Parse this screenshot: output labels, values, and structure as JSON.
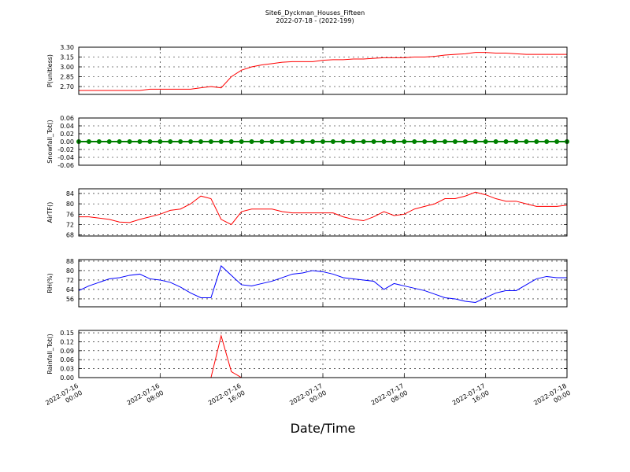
{
  "chart_data": [
    {
      "type": "line",
      "title": "Site6_Dyckman_Houses_Fifteen",
      "subtitle": "2022-07-18 - (2022-199)",
      "ylabel": "P(unitless)",
      "color": "#ff0000",
      "x": [
        "2022-07-16 00:00",
        "2022-07-16 01:00",
        "2022-07-16 02:00",
        "2022-07-16 03:00",
        "2022-07-16 04:00",
        "2022-07-16 05:00",
        "2022-07-16 06:00",
        "2022-07-16 07:00",
        "2022-07-16 08:00",
        "2022-07-16 09:00",
        "2022-07-16 10:00",
        "2022-07-16 11:00",
        "2022-07-16 12:00",
        "2022-07-16 13:00",
        "2022-07-16 14:00",
        "2022-07-16 15:00",
        "2022-07-16 16:00",
        "2022-07-16 17:00",
        "2022-07-16 18:00",
        "2022-07-16 19:00",
        "2022-07-16 20:00",
        "2022-07-16 21:00",
        "2022-07-16 22:00",
        "2022-07-16 23:00",
        "2022-07-17 00:00",
        "2022-07-17 01:00",
        "2022-07-17 02:00",
        "2022-07-17 03:00",
        "2022-07-17 04:00",
        "2022-07-17 05:00",
        "2022-07-17 06:00",
        "2022-07-17 07:00",
        "2022-07-17 08:00",
        "2022-07-17 09:00",
        "2022-07-17 10:00",
        "2022-07-17 11:00",
        "2022-07-17 12:00",
        "2022-07-17 13:00",
        "2022-07-17 14:00",
        "2022-07-17 15:00",
        "2022-07-17 16:00",
        "2022-07-17 17:00",
        "2022-07-17 18:00",
        "2022-07-17 19:00",
        "2022-07-17 20:00",
        "2022-07-17 21:00",
        "2022-07-17 22:00",
        "2022-07-17 23:00",
        "2022-07-18 00:00"
      ],
      "values": [
        2.64,
        2.64,
        2.64,
        2.64,
        2.64,
        2.64,
        2.64,
        2.66,
        2.66,
        2.66,
        2.66,
        2.66,
        2.68,
        2.7,
        2.68,
        2.85,
        2.95,
        3.0,
        3.03,
        3.05,
        3.07,
        3.08,
        3.08,
        3.08,
        3.1,
        3.11,
        3.11,
        3.12,
        3.12,
        3.13,
        3.14,
        3.14,
        3.14,
        3.15,
        3.15,
        3.16,
        3.18,
        3.19,
        3.2,
        3.22,
        3.22,
        3.21,
        3.21,
        3.2,
        3.19,
        3.19,
        3.19,
        3.19,
        3.19
      ],
      "xlim": [
        "2022-07-16 00:00",
        "2022-07-18 00:00"
      ],
      "xticks": [
        "2022-07-16 00:00",
        "2022-07-16 08:00",
        "2022-07-16 16:00",
        "2022-07-17 00:00",
        "2022-07-17 08:00",
        "2022-07-17 16:00",
        "2022-07-18 00:00"
      ],
      "ylim": [
        2.58,
        3.3
      ],
      "yticks": [
        {
          "value": 2.7,
          "label": "2.70"
        },
        2.85,
        {
          "value": 3.0,
          "label": "3.00"
        },
        3.15,
        {
          "value": 3.3,
          "label": "3.30"
        }
      ],
      "grid": true
    },
    {
      "type": "line",
      "ylabel": "Snowfall_Tot()",
      "color": "#008000",
      "marker": "circle",
      "x": [
        "2022-07-16 00:00",
        "2022-07-16 01:00",
        "2022-07-16 02:00",
        "2022-07-16 03:00",
        "2022-07-16 04:00",
        "2022-07-16 05:00",
        "2022-07-16 06:00",
        "2022-07-16 07:00",
        "2022-07-16 08:00",
        "2022-07-16 09:00",
        "2022-07-16 10:00",
        "2022-07-16 11:00",
        "2022-07-16 12:00",
        "2022-07-16 13:00",
        "2022-07-16 14:00",
        "2022-07-16 15:00",
        "2022-07-16 16:00",
        "2022-07-16 17:00",
        "2022-07-16 18:00",
        "2022-07-16 19:00",
        "2022-07-16 20:00",
        "2022-07-16 21:00",
        "2022-07-16 22:00",
        "2022-07-16 23:00",
        "2022-07-17 00:00",
        "2022-07-17 01:00",
        "2022-07-17 02:00",
        "2022-07-17 03:00",
        "2022-07-17 04:00",
        "2022-07-17 05:00",
        "2022-07-17 06:00",
        "2022-07-17 07:00",
        "2022-07-17 08:00",
        "2022-07-17 09:00",
        "2022-07-17 10:00",
        "2022-07-17 11:00",
        "2022-07-17 12:00",
        "2022-07-17 13:00",
        "2022-07-17 14:00",
        "2022-07-17 15:00",
        "2022-07-17 16:00",
        "2022-07-17 17:00",
        "2022-07-17 18:00",
        "2022-07-17 19:00",
        "2022-07-17 20:00",
        "2022-07-17 21:00",
        "2022-07-17 22:00",
        "2022-07-17 23:00",
        "2022-07-18 00:00"
      ],
      "values": [
        0,
        0,
        0,
        0,
        0,
        0,
        0,
        0,
        0,
        0,
        0,
        0,
        0,
        0,
        0,
        0,
        0,
        0,
        0,
        0,
        0,
        0,
        0,
        0,
        0,
        0,
        0,
        0,
        0,
        0,
        0,
        0,
        0,
        0,
        0,
        0,
        0,
        0,
        0,
        0,
        0,
        0,
        0,
        0,
        0,
        0,
        0,
        0,
        0
      ],
      "xlim": [
        "2022-07-16 00:00",
        "2022-07-18 00:00"
      ],
      "xticks": [
        "2022-07-16 00:00",
        "2022-07-16 08:00",
        "2022-07-16 16:00",
        "2022-07-17 00:00",
        "2022-07-17 08:00",
        "2022-07-17 16:00",
        "2022-07-18 00:00"
      ],
      "ylim": [
        -0.06,
        0.06
      ],
      "yticks": [
        -0.06,
        -0.04,
        -0.02,
        {
          "value": 0,
          "label": "0.00"
        },
        0.02,
        0.04,
        0.06
      ],
      "grid": true
    },
    {
      "type": "line",
      "ylabel": "AirTF()",
      "color": "#ff0000",
      "x": [
        "2022-07-16 00:00",
        "2022-07-16 01:00",
        "2022-07-16 02:00",
        "2022-07-16 03:00",
        "2022-07-16 04:00",
        "2022-07-16 05:00",
        "2022-07-16 06:00",
        "2022-07-16 07:00",
        "2022-07-16 08:00",
        "2022-07-16 09:00",
        "2022-07-16 10:00",
        "2022-07-16 11:00",
        "2022-07-16 12:00",
        "2022-07-16 13:00",
        "2022-07-16 14:00",
        "2022-07-16 15:00",
        "2022-07-16 16:00",
        "2022-07-16 17:00",
        "2022-07-16 18:00",
        "2022-07-16 19:00",
        "2022-07-16 20:00",
        "2022-07-16 21:00",
        "2022-07-16 22:00",
        "2022-07-16 23:00",
        "2022-07-17 00:00",
        "2022-07-17 01:00",
        "2022-07-17 02:00",
        "2022-07-17 03:00",
        "2022-07-17 04:00",
        "2022-07-17 05:00",
        "2022-07-17 06:00",
        "2022-07-17 07:00",
        "2022-07-17 08:00",
        "2022-07-17 09:00",
        "2022-07-17 10:00",
        "2022-07-17 11:00",
        "2022-07-17 12:00",
        "2022-07-17 13:00",
        "2022-07-17 14:00",
        "2022-07-17 15:00",
        "2022-07-17 16:00",
        "2022-07-17 17:00",
        "2022-07-17 18:00",
        "2022-07-17 19:00",
        "2022-07-17 20:00",
        "2022-07-17 21:00",
        "2022-07-17 22:00",
        "2022-07-17 23:00",
        "2022-07-18 00:00"
      ],
      "values": [
        75,
        75,
        74.5,
        74,
        73,
        72.8,
        74,
        75,
        76,
        77.5,
        78,
        80,
        83,
        82,
        74,
        72,
        77,
        78,
        78,
        78,
        77,
        76.5,
        76.5,
        76.5,
        76.5,
        76.5,
        75,
        74,
        73.5,
        75,
        77,
        75.5,
        76,
        78,
        79,
        80,
        82,
        82,
        83,
        84.5,
        83.5,
        82,
        81,
        81,
        80,
        79,
        79,
        79,
        79.5
      ],
      "xlim": [
        "2022-07-16 00:00",
        "2022-07-18 00:00"
      ],
      "xticks": [
        "2022-07-16 00:00",
        "2022-07-16 08:00",
        "2022-07-16 16:00",
        "2022-07-17 00:00",
        "2022-07-17 08:00",
        "2022-07-17 16:00",
        "2022-07-18 00:00"
      ],
      "ylim": [
        67.6,
        85.8
      ],
      "yticks": [
        68,
        72,
        76,
        80,
        84
      ],
      "grid": true
    },
    {
      "type": "line",
      "ylabel": "RH(%)",
      "color": "#0000ff",
      "x": [
        "2022-07-16 00:00",
        "2022-07-16 01:00",
        "2022-07-16 02:00",
        "2022-07-16 03:00",
        "2022-07-16 04:00",
        "2022-07-16 05:00",
        "2022-07-16 06:00",
        "2022-07-16 07:00",
        "2022-07-16 08:00",
        "2022-07-16 09:00",
        "2022-07-16 10:00",
        "2022-07-16 11:00",
        "2022-07-16 12:00",
        "2022-07-16 13:00",
        "2022-07-16 14:00",
        "2022-07-16 15:00",
        "2022-07-16 16:00",
        "2022-07-16 17:00",
        "2022-07-16 18:00",
        "2022-07-16 19:00",
        "2022-07-16 20:00",
        "2022-07-16 21:00",
        "2022-07-16 22:00",
        "2022-07-16 23:00",
        "2022-07-17 00:00",
        "2022-07-17 01:00",
        "2022-07-17 02:00",
        "2022-07-17 03:00",
        "2022-07-17 04:00",
        "2022-07-17 05:00",
        "2022-07-17 06:00",
        "2022-07-17 07:00",
        "2022-07-17 08:00",
        "2022-07-17 09:00",
        "2022-07-17 10:00",
        "2022-07-17 11:00",
        "2022-07-17 12:00",
        "2022-07-17 13:00",
        "2022-07-17 14:00",
        "2022-07-17 15:00",
        "2022-07-17 16:00",
        "2022-07-17 17:00",
        "2022-07-17 18:00",
        "2022-07-17 19:00",
        "2022-07-17 20:00",
        "2022-07-17 21:00",
        "2022-07-17 22:00",
        "2022-07-17 23:00",
        "2022-07-18 00:00"
      ],
      "values": [
        63,
        67,
        70,
        73,
        74,
        76,
        77,
        73,
        72,
        70,
        66,
        61,
        57,
        57,
        84,
        76,
        68,
        67,
        69,
        71,
        74,
        77,
        78,
        80,
        79,
        77,
        74,
        73,
        72,
        71,
        64,
        69,
        67,
        65,
        63,
        60,
        57,
        56,
        54,
        53,
        57,
        61,
        63,
        63,
        68,
        73,
        75,
        74,
        74
      ],
      "xlim": [
        "2022-07-16 00:00",
        "2022-07-18 00:00"
      ],
      "xticks": [
        "2022-07-16 00:00",
        "2022-07-16 08:00",
        "2022-07-16 16:00",
        "2022-07-17 00:00",
        "2022-07-17 08:00",
        "2022-07-17 16:00",
        "2022-07-18 00:00"
      ],
      "ylim": [
        49.3,
        89.3
      ],
      "yticks": [
        56,
        64,
        72,
        80,
        88
      ],
      "grid": true
    },
    {
      "type": "line",
      "ylabel": "Rainfall_Tot()",
      "xlabel": "Date/Time",
      "color": "#ff0000",
      "x": [
        "2022-07-16 00:00",
        "2022-07-16 01:00",
        "2022-07-16 02:00",
        "2022-07-16 03:00",
        "2022-07-16 04:00",
        "2022-07-16 05:00",
        "2022-07-16 06:00",
        "2022-07-16 07:00",
        "2022-07-16 08:00",
        "2022-07-16 09:00",
        "2022-07-16 10:00",
        "2022-07-16 11:00",
        "2022-07-16 12:00",
        "2022-07-16 13:00",
        "2022-07-16 14:00",
        "2022-07-16 15:00",
        "2022-07-16 16:00",
        "2022-07-16 17:00",
        "2022-07-16 18:00",
        "2022-07-16 19:00",
        "2022-07-16 20:00",
        "2022-07-16 21:00",
        "2022-07-16 22:00",
        "2022-07-16 23:00",
        "2022-07-17 00:00",
        "2022-07-17 01:00",
        "2022-07-17 02:00",
        "2022-07-17 03:00",
        "2022-07-17 04:00",
        "2022-07-17 05:00",
        "2022-07-17 06:00",
        "2022-07-17 07:00",
        "2022-07-17 08:00",
        "2022-07-17 09:00",
        "2022-07-17 10:00",
        "2022-07-17 11:00",
        "2022-07-17 12:00",
        "2022-07-17 13:00",
        "2022-07-17 14:00",
        "2022-07-17 15:00",
        "2022-07-17 16:00",
        "2022-07-17 17:00",
        "2022-07-17 18:00",
        "2022-07-17 19:00",
        "2022-07-17 20:00",
        "2022-07-17 21:00",
        "2022-07-17 22:00",
        "2022-07-17 23:00",
        "2022-07-18 00:00"
      ],
      "values": [
        0,
        0,
        0,
        0,
        0,
        0,
        0,
        0,
        0,
        0,
        0,
        0,
        0,
        0,
        0.14,
        0.02,
        0,
        0,
        0,
        0,
        0,
        0,
        0,
        0,
        0,
        0,
        0,
        0,
        0,
        0,
        0,
        0,
        0,
        0,
        0,
        0,
        0,
        0,
        0,
        0,
        0,
        0,
        0,
        0,
        0,
        0,
        0,
        0,
        0
      ],
      "xlim": [
        "2022-07-16 00:00",
        "2022-07-18 00:00"
      ],
      "xticks": [
        "2022-07-16 00:00",
        "2022-07-16 08:00",
        "2022-07-16 16:00",
        "2022-07-17 00:00",
        "2022-07-17 08:00",
        "2022-07-17 16:00",
        "2022-07-18 00:00"
      ],
      "ylim": [
        0,
        0.158
      ],
      "yticks": [
        {
          "value": 0,
          "label": "0.00"
        },
        0.03,
        0.06,
        0.09,
        0.12,
        0.15
      ],
      "grid": true,
      "xticklabels": true
    }
  ]
}
